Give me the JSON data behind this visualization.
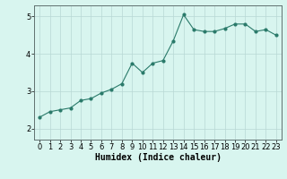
{
  "x": [
    0,
    1,
    2,
    3,
    4,
    5,
    6,
    7,
    8,
    9,
    10,
    11,
    12,
    13,
    14,
    15,
    16,
    17,
    18,
    19,
    20,
    21,
    22,
    23
  ],
  "y": [
    2.3,
    2.45,
    2.5,
    2.55,
    2.75,
    2.8,
    2.95,
    3.05,
    3.2,
    3.75,
    3.5,
    3.75,
    3.82,
    4.35,
    5.05,
    4.65,
    4.6,
    4.6,
    4.68,
    4.8,
    4.8,
    4.6,
    4.65,
    4.5
  ],
  "line_color": "#2a7a6a",
  "marker": "o",
  "markersize": 2.0,
  "linewidth": 0.8,
  "xlabel": "Humidex (Indice chaleur)",
  "xlim": [
    -0.5,
    23.5
  ],
  "ylim": [
    1.7,
    5.3
  ],
  "yticks": [
    2,
    3,
    4,
    5
  ],
  "xticks": [
    0,
    1,
    2,
    3,
    4,
    5,
    6,
    7,
    8,
    9,
    10,
    11,
    12,
    13,
    14,
    15,
    16,
    17,
    18,
    19,
    20,
    21,
    22,
    23
  ],
  "bg_color": "#d8f5ef",
  "grid_color": "#b8d8d4",
  "tick_fontsize": 6,
  "xlabel_fontsize": 7,
  "spine_color": "#607070"
}
